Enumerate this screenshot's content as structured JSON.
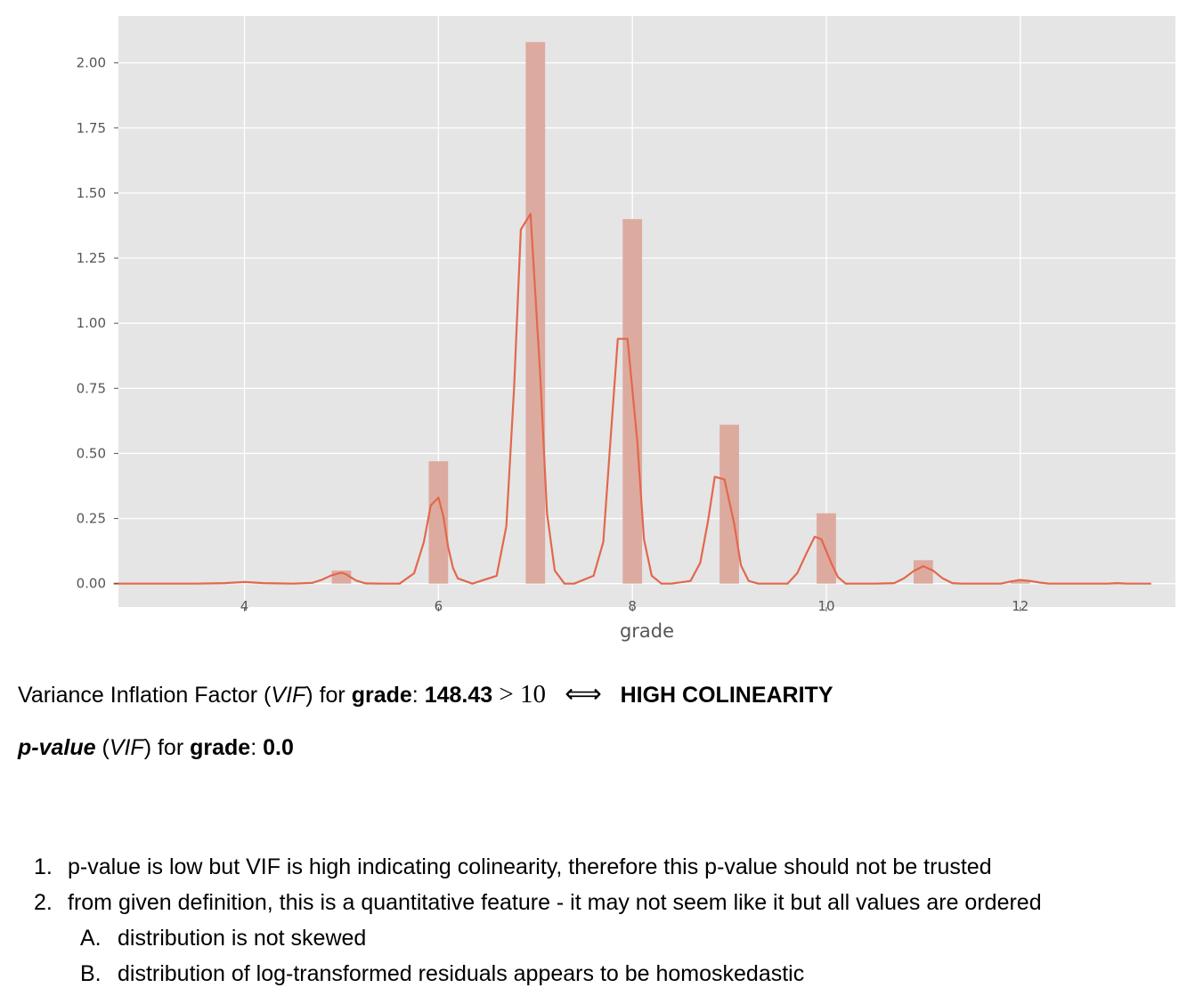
{
  "chart_data": {
    "type": "bar",
    "xlabel": "grade",
    "ylabel": "",
    "xlim": [
      2.7,
      13.6
    ],
    "ylim": [
      -0.09,
      2.18
    ],
    "x_ticks": [
      "4",
      "6",
      "8",
      "10",
      "12"
    ],
    "y_ticks": [
      "0.00",
      "0.25",
      "0.50",
      "0.75",
      "1.00",
      "1.25",
      "1.50",
      "1.75",
      "2.00"
    ],
    "grid": true,
    "bars": [
      {
        "x": 5.0,
        "value": 0.05
      },
      {
        "x": 6.0,
        "value": 0.47
      },
      {
        "x": 7.0,
        "value": 2.08
      },
      {
        "x": 8.0,
        "value": 1.4
      },
      {
        "x": 9.0,
        "value": 0.61
      },
      {
        "x": 10.0,
        "value": 0.27
      },
      {
        "x": 11.0,
        "value": 0.09
      },
      {
        "x": 12.0,
        "value": 0.01
      }
    ],
    "bar_width": 0.2,
    "kde": {
      "x": [
        2.65,
        3.5,
        3.8,
        4.0,
        4.2,
        4.5,
        4.7,
        4.8,
        4.9,
        5.0,
        5.05,
        5.15,
        5.25,
        5.4,
        5.6,
        5.75,
        5.85,
        5.92,
        6.0,
        6.05,
        6.1,
        6.15,
        6.2,
        6.35,
        6.6,
        6.7,
        6.78,
        6.85,
        6.95,
        7.05,
        7.12,
        7.2,
        7.3,
        7.4,
        7.6,
        7.7,
        7.78,
        7.85,
        7.95,
        8.05,
        8.12,
        8.2,
        8.3,
        8.4,
        8.6,
        8.7,
        8.78,
        8.85,
        8.95,
        9.05,
        9.12,
        9.2,
        9.3,
        9.4,
        9.6,
        9.7,
        9.8,
        9.88,
        9.95,
        10.05,
        10.12,
        10.2,
        10.35,
        10.5,
        10.7,
        10.8,
        10.9,
        11.0,
        11.1,
        11.2,
        11.3,
        11.4,
        11.6,
        11.8,
        11.9,
        12.0,
        12.1,
        12.2,
        12.3,
        12.6,
        12.9,
        13.0,
        13.1,
        13.35
      ],
      "y": [
        0.0,
        0.0,
        0.002,
        0.006,
        0.002,
        0.0,
        0.003,
        0.015,
        0.032,
        0.042,
        0.035,
        0.012,
        0.001,
        0.0,
        0.0,
        0.04,
        0.16,
        0.3,
        0.33,
        0.26,
        0.14,
        0.06,
        0.02,
        0.0,
        0.03,
        0.22,
        0.75,
        1.36,
        1.42,
        0.8,
        0.27,
        0.05,
        0.0,
        0.0,
        0.03,
        0.16,
        0.58,
        0.94,
        0.94,
        0.55,
        0.17,
        0.03,
        0.0,
        0.0,
        0.01,
        0.08,
        0.24,
        0.41,
        0.4,
        0.23,
        0.07,
        0.01,
        0.0,
        0.0,
        0.0,
        0.04,
        0.12,
        0.18,
        0.17,
        0.08,
        0.025,
        0.0,
        0.0,
        0.0,
        0.002,
        0.02,
        0.048,
        0.067,
        0.05,
        0.02,
        0.002,
        0.0,
        0.0,
        0.0,
        0.008,
        0.014,
        0.01,
        0.004,
        0.0,
        0.0,
        0.0,
        0.002,
        0.0,
        0.0
      ]
    },
    "colors": {
      "background": "#e5e5e5",
      "grid": "#ffffff",
      "bar": "#ddaa9f",
      "kde": "#e2684d",
      "text": "#555555"
    }
  },
  "vif": {
    "prefix": "Variance Inflation Factor (",
    "vif_abbr": "VIF",
    "mid": ") for ",
    "feature": "grade",
    "colon": ": ",
    "value": "148.43",
    "gt_math": " > 10 ",
    "iff": "⟺",
    "conclusion": "HIGH COLINEARITY"
  },
  "pvalue": {
    "label": "p-value",
    "open": " (",
    "vif_abbr": "VIF",
    "mid": ") for ",
    "feature": "grade",
    "colon": ": ",
    "value": "0.0"
  },
  "notes": [
    {
      "num": "1.",
      "text": "p-value is low but VIF is high indicating colinearity, therefore this p-value should not be trusted"
    },
    {
      "num": "2.",
      "text": "from given definition, this is a quantitative feature - it may not seem like it but all values are ordered"
    }
  ],
  "subnotes": [
    {
      "num": "A.",
      "text": "distribution is not skewed"
    },
    {
      "num": "B.",
      "text": "distribution of log-transformed residuals appears to be homoskedastic"
    }
  ]
}
